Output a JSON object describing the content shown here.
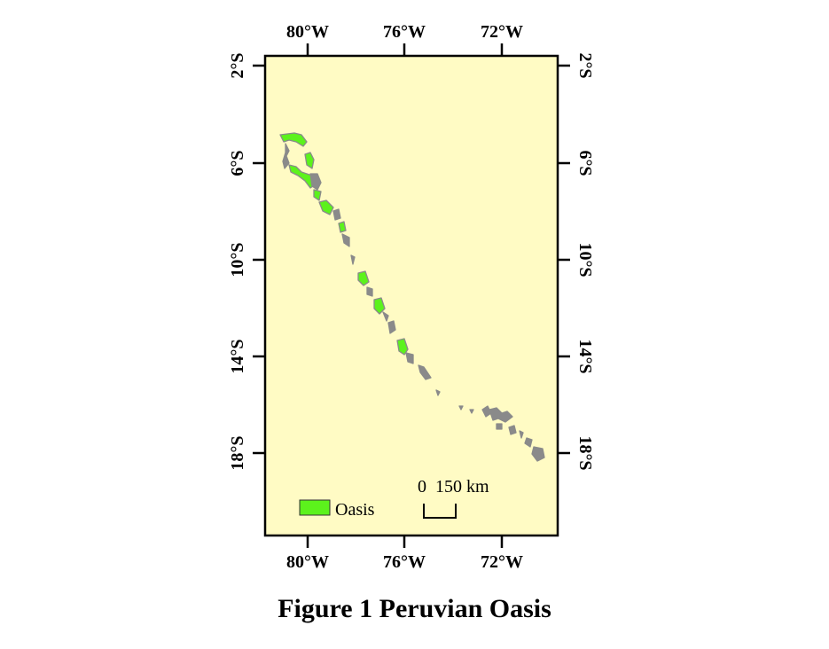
{
  "colors": {
    "map_background": "#fffbc4",
    "oasis_fill": "#5cf21c",
    "oasis_outline": "#8a8a8a",
    "frame": "#000000"
  },
  "axes": {
    "longitude_ticks": [
      "80°W",
      "76°W",
      "72°W"
    ],
    "latitude_ticks": [
      "2°S",
      "6°S",
      "10°S",
      "14°S",
      "18°S"
    ]
  },
  "legend": {
    "label": "Oasis"
  },
  "scale_bar": {
    "label": "0  150 km"
  },
  "caption": "Figure 1  Peruvian Oasis"
}
